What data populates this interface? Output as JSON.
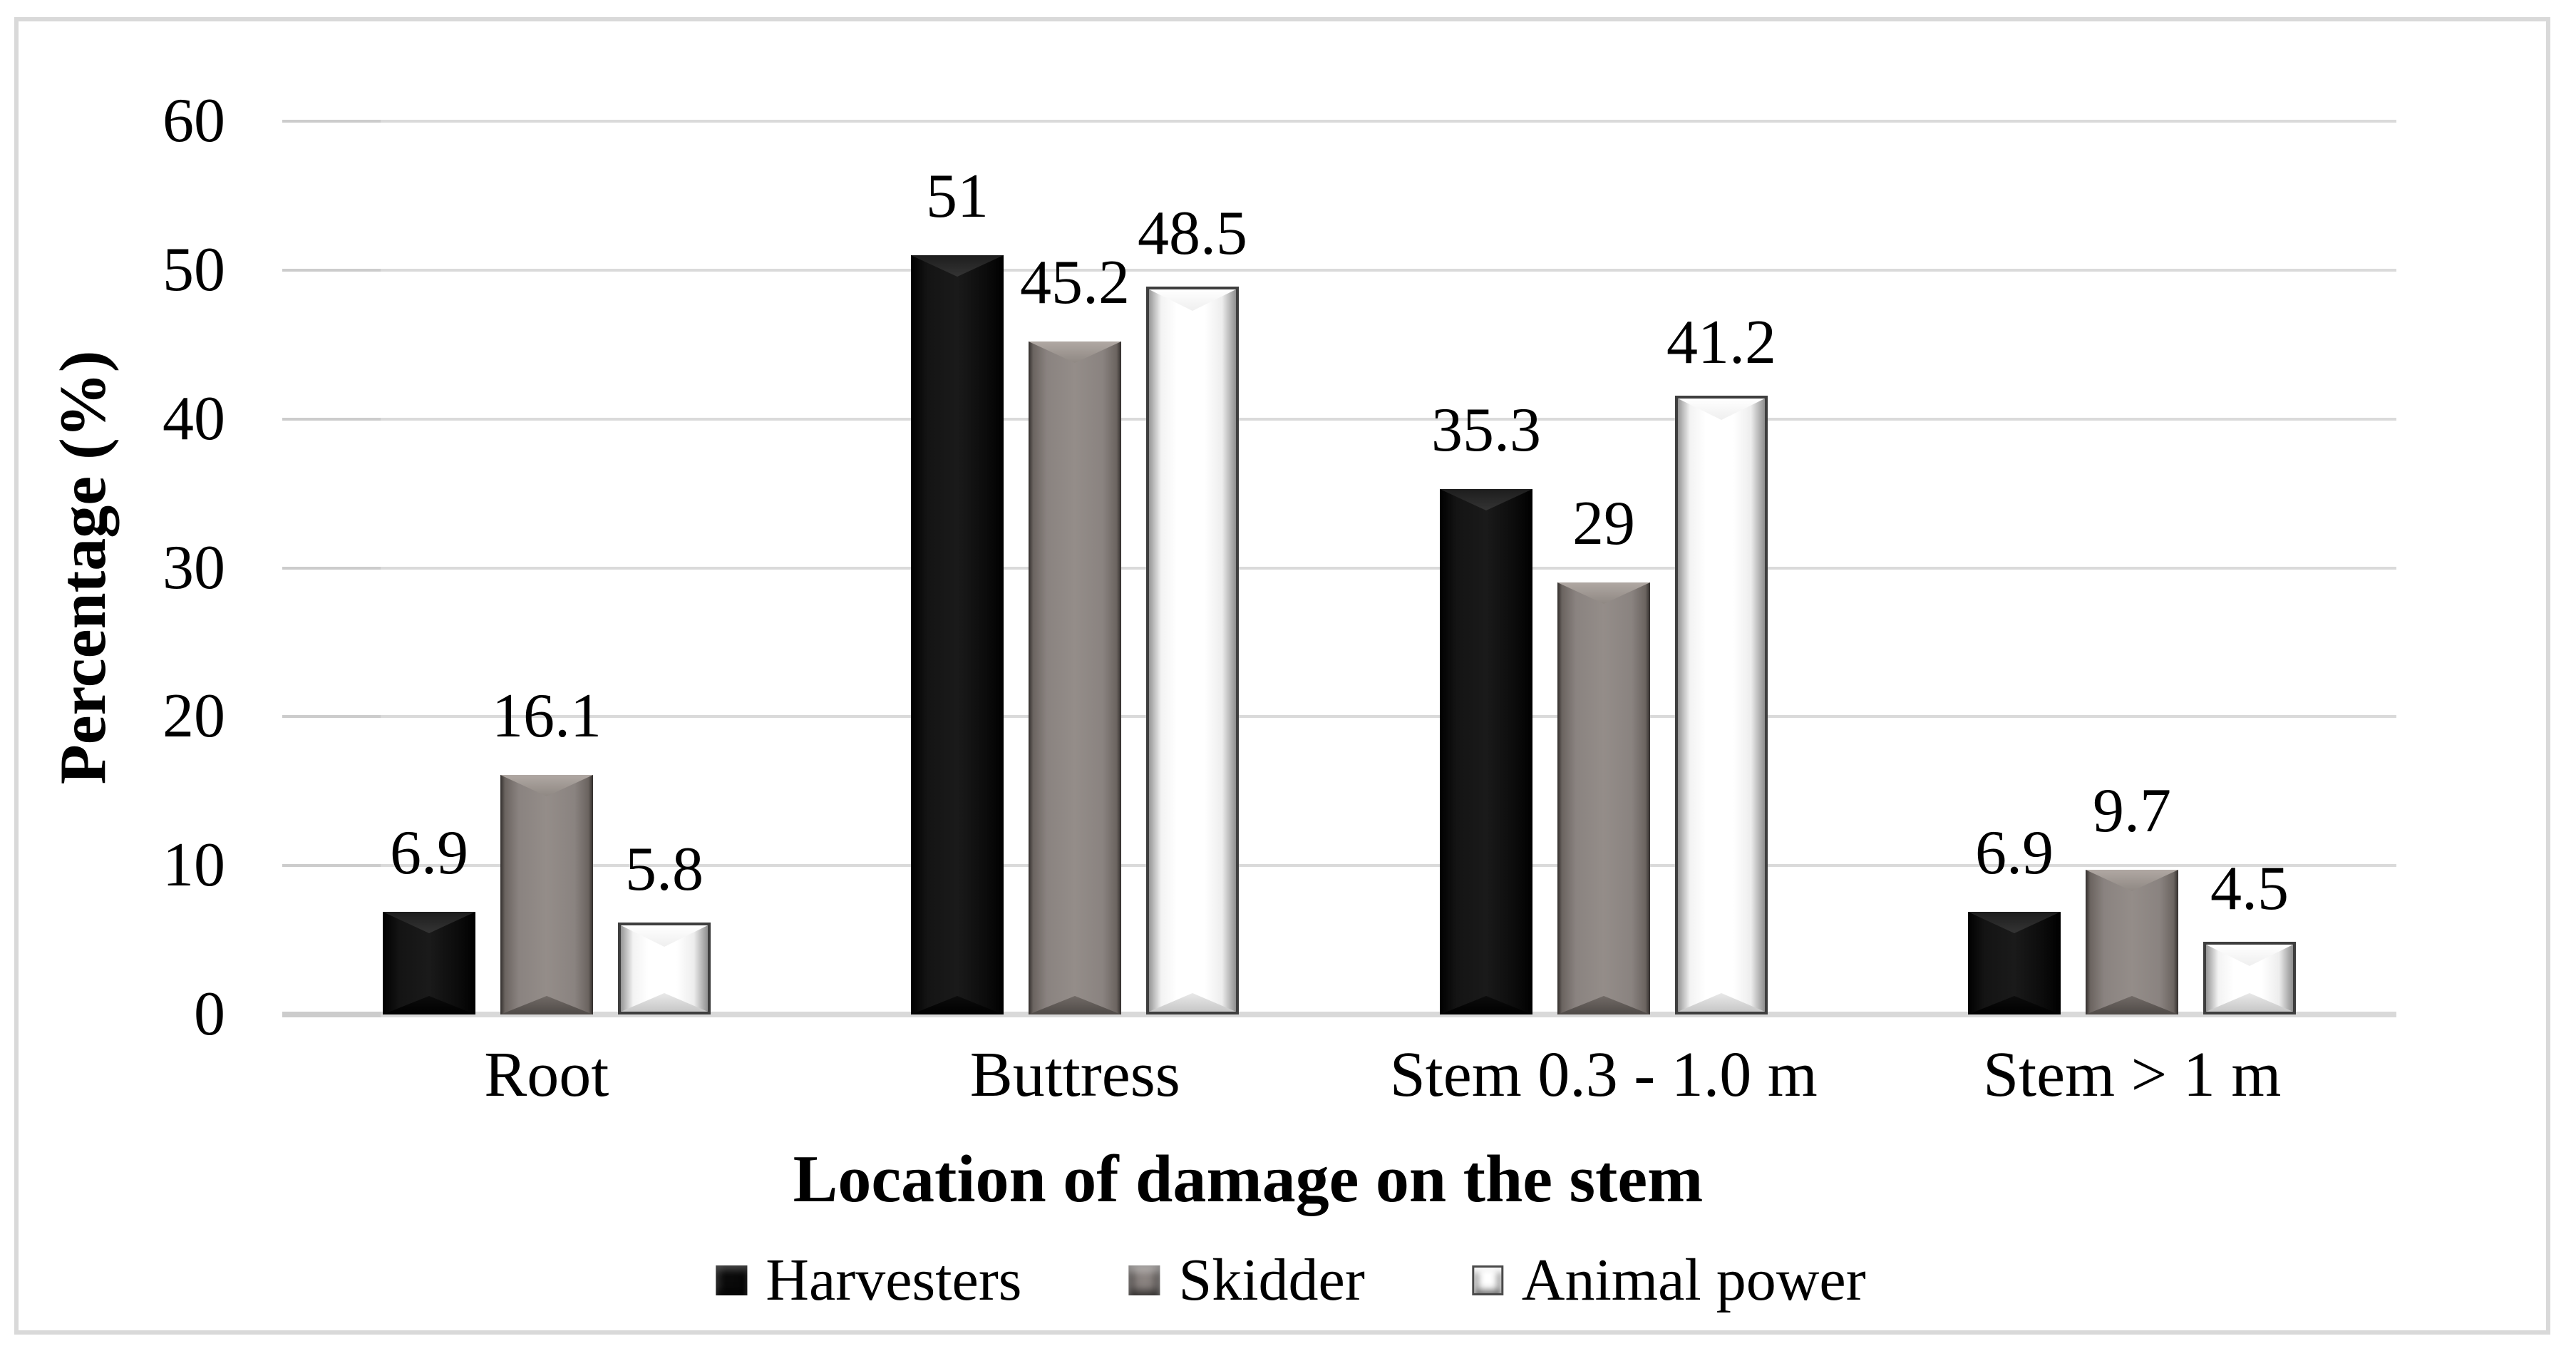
{
  "chart_data": {
    "type": "bar",
    "title": "",
    "categories": [
      "Root",
      "Buttress",
      "Stem 0.3 - 1.0 m",
      "Stem > 1 m"
    ],
    "series": [
      {
        "name": "Harvesters",
        "color": "#0a0a0a",
        "values": [
          6.9,
          51,
          35.3,
          6.9
        ],
        "labels": [
          "6.9",
          "51",
          "35.3",
          "6.9"
        ]
      },
      {
        "name": "Skidder",
        "color": "#8a8380",
        "values": [
          16.1,
          45.2,
          29,
          9.7
        ],
        "labels": [
          "16.1",
          "45.2",
          "29",
          "9.7"
        ]
      },
      {
        "name": "Animal power",
        "color": "#ffffff",
        "values": [
          5.8,
          48.5,
          41.2,
          4.5
        ],
        "labels": [
          "5.8",
          "48.5",
          "41.2",
          "4.5"
        ]
      }
    ],
    "xlabel": "Location of damage on the stem",
    "ylabel": "Percentage (%)",
    "ylim": [
      0,
      60
    ],
    "ytick_interval": 10,
    "yticks": [
      "0",
      "10",
      "20",
      "30",
      "40",
      "50",
      "60"
    ],
    "grid": "horizontal",
    "legend_position": "bottom",
    "bar_style": "beveled-3d"
  },
  "colors": {
    "gridline": "#dadada",
    "tick": "#cccccc",
    "frame_border": "#d9d9d9",
    "text": "#000000",
    "background": "#ffffff"
  }
}
